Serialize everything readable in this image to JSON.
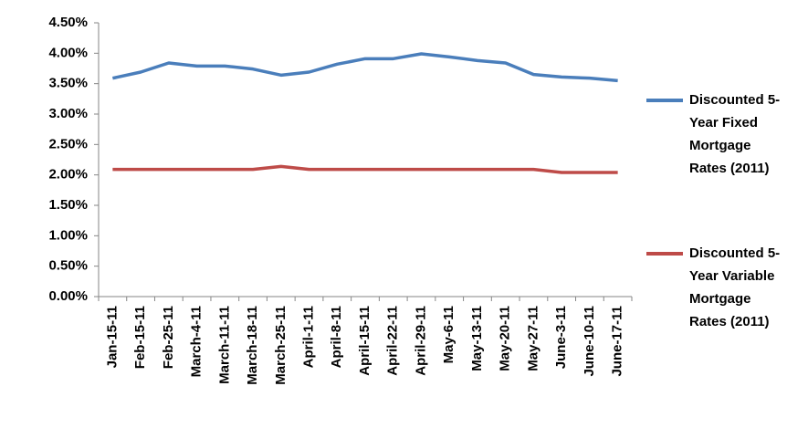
{
  "chart_data": {
    "type": "line",
    "categories": [
      "Jan-15-11",
      "Feb-15-11",
      "Feb-25-11",
      "March-4-11",
      "March-11-11",
      "March-18-11",
      "March-25-11",
      "April-1-11",
      "April-8-11",
      "April-15-11",
      "April-22-11",
      "April-29-11",
      "May-6-11",
      "May-13-11",
      "May-20-11",
      "May-27-11",
      "June-3-11",
      "June-10-11",
      "June-17-11"
    ],
    "series": [
      {
        "name": "Discounted 5-Year Fixed Mortgage Rates (2011)",
        "color": "#4a7ebb",
        "values": [
          3.59,
          3.69,
          3.84,
          3.79,
          3.79,
          3.74,
          3.64,
          3.69,
          3.82,
          3.91,
          3.91,
          3.99,
          3.94,
          3.88,
          3.84,
          3.65,
          3.61,
          3.59,
          3.55
        ]
      },
      {
        "name": "Discounted 5-Year Variable Mortgage Rates (2011)",
        "color": "#be4b48",
        "values": [
          2.09,
          2.09,
          2.09,
          2.09,
          2.09,
          2.09,
          2.14,
          2.09,
          2.09,
          2.09,
          2.09,
          2.09,
          2.09,
          2.09,
          2.09,
          2.09,
          2.04,
          2.04,
          2.04
        ]
      }
    ],
    "ylim": [
      0,
      4.5
    ],
    "yticks": [
      {
        "value": 0,
        "label": "0.00%"
      },
      {
        "value": 0.5,
        "label": "0.50%"
      },
      {
        "value": 1,
        "label": "1.00%"
      },
      {
        "value": 1.5,
        "label": "1.50%"
      },
      {
        "value": 2,
        "label": "2.00%"
      },
      {
        "value": 2.5,
        "label": "2.50%"
      },
      {
        "value": 3,
        "label": "3.00%"
      },
      {
        "value": 3.5,
        "label": "3.50%"
      },
      {
        "value": 4,
        "label": "4.00%"
      },
      {
        "value": 4.5,
        "label": "4.50%"
      }
    ],
    "legend": "right"
  }
}
